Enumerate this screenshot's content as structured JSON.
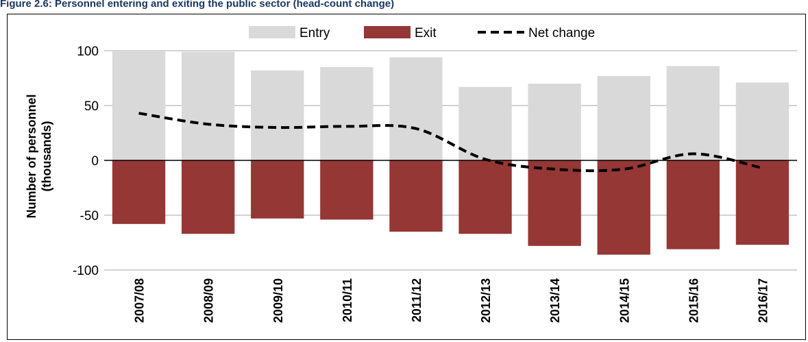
{
  "caption": "Figure 2.6: Personnel entering and exiting the public sector (head-count change)",
  "chart_data": {
    "type": "bar",
    "categories": [
      "2007/08",
      "2008/09",
      "2009/10",
      "2010/11",
      "2011/12",
      "2012/13",
      "2013/14",
      "2014/15",
      "2015/16",
      "2016/17"
    ],
    "series": [
      {
        "name": "Entry",
        "kind": "bar",
        "color": "#d9d9d9",
        "values": [
          100,
          99,
          82,
          85,
          94,
          67,
          70,
          77,
          86,
          71
        ]
      },
      {
        "name": "Exit",
        "kind": "bar",
        "color": "#953735",
        "values": [
          -58,
          -67,
          -53,
          -54,
          -65,
          -67,
          -78,
          -86,
          -81,
          -77
        ]
      },
      {
        "name": "Net change",
        "kind": "line",
        "style": "dashed",
        "color": "#000000",
        "values": [
          43,
          33,
          30,
          31,
          29,
          1,
          -8,
          -8,
          6,
          -7
        ]
      }
    ],
    "ylabel": "Number of personnel (thousands)",
    "ylabel_lines": [
      "Number of personnel",
      "(thousands)"
    ],
    "yticks": [
      100,
      50,
      0,
      -50,
      -100
    ],
    "ylim": [
      -100,
      100
    ],
    "grid": true,
    "legend_position": "top-center",
    "xlabel_rotation": "vertical"
  }
}
